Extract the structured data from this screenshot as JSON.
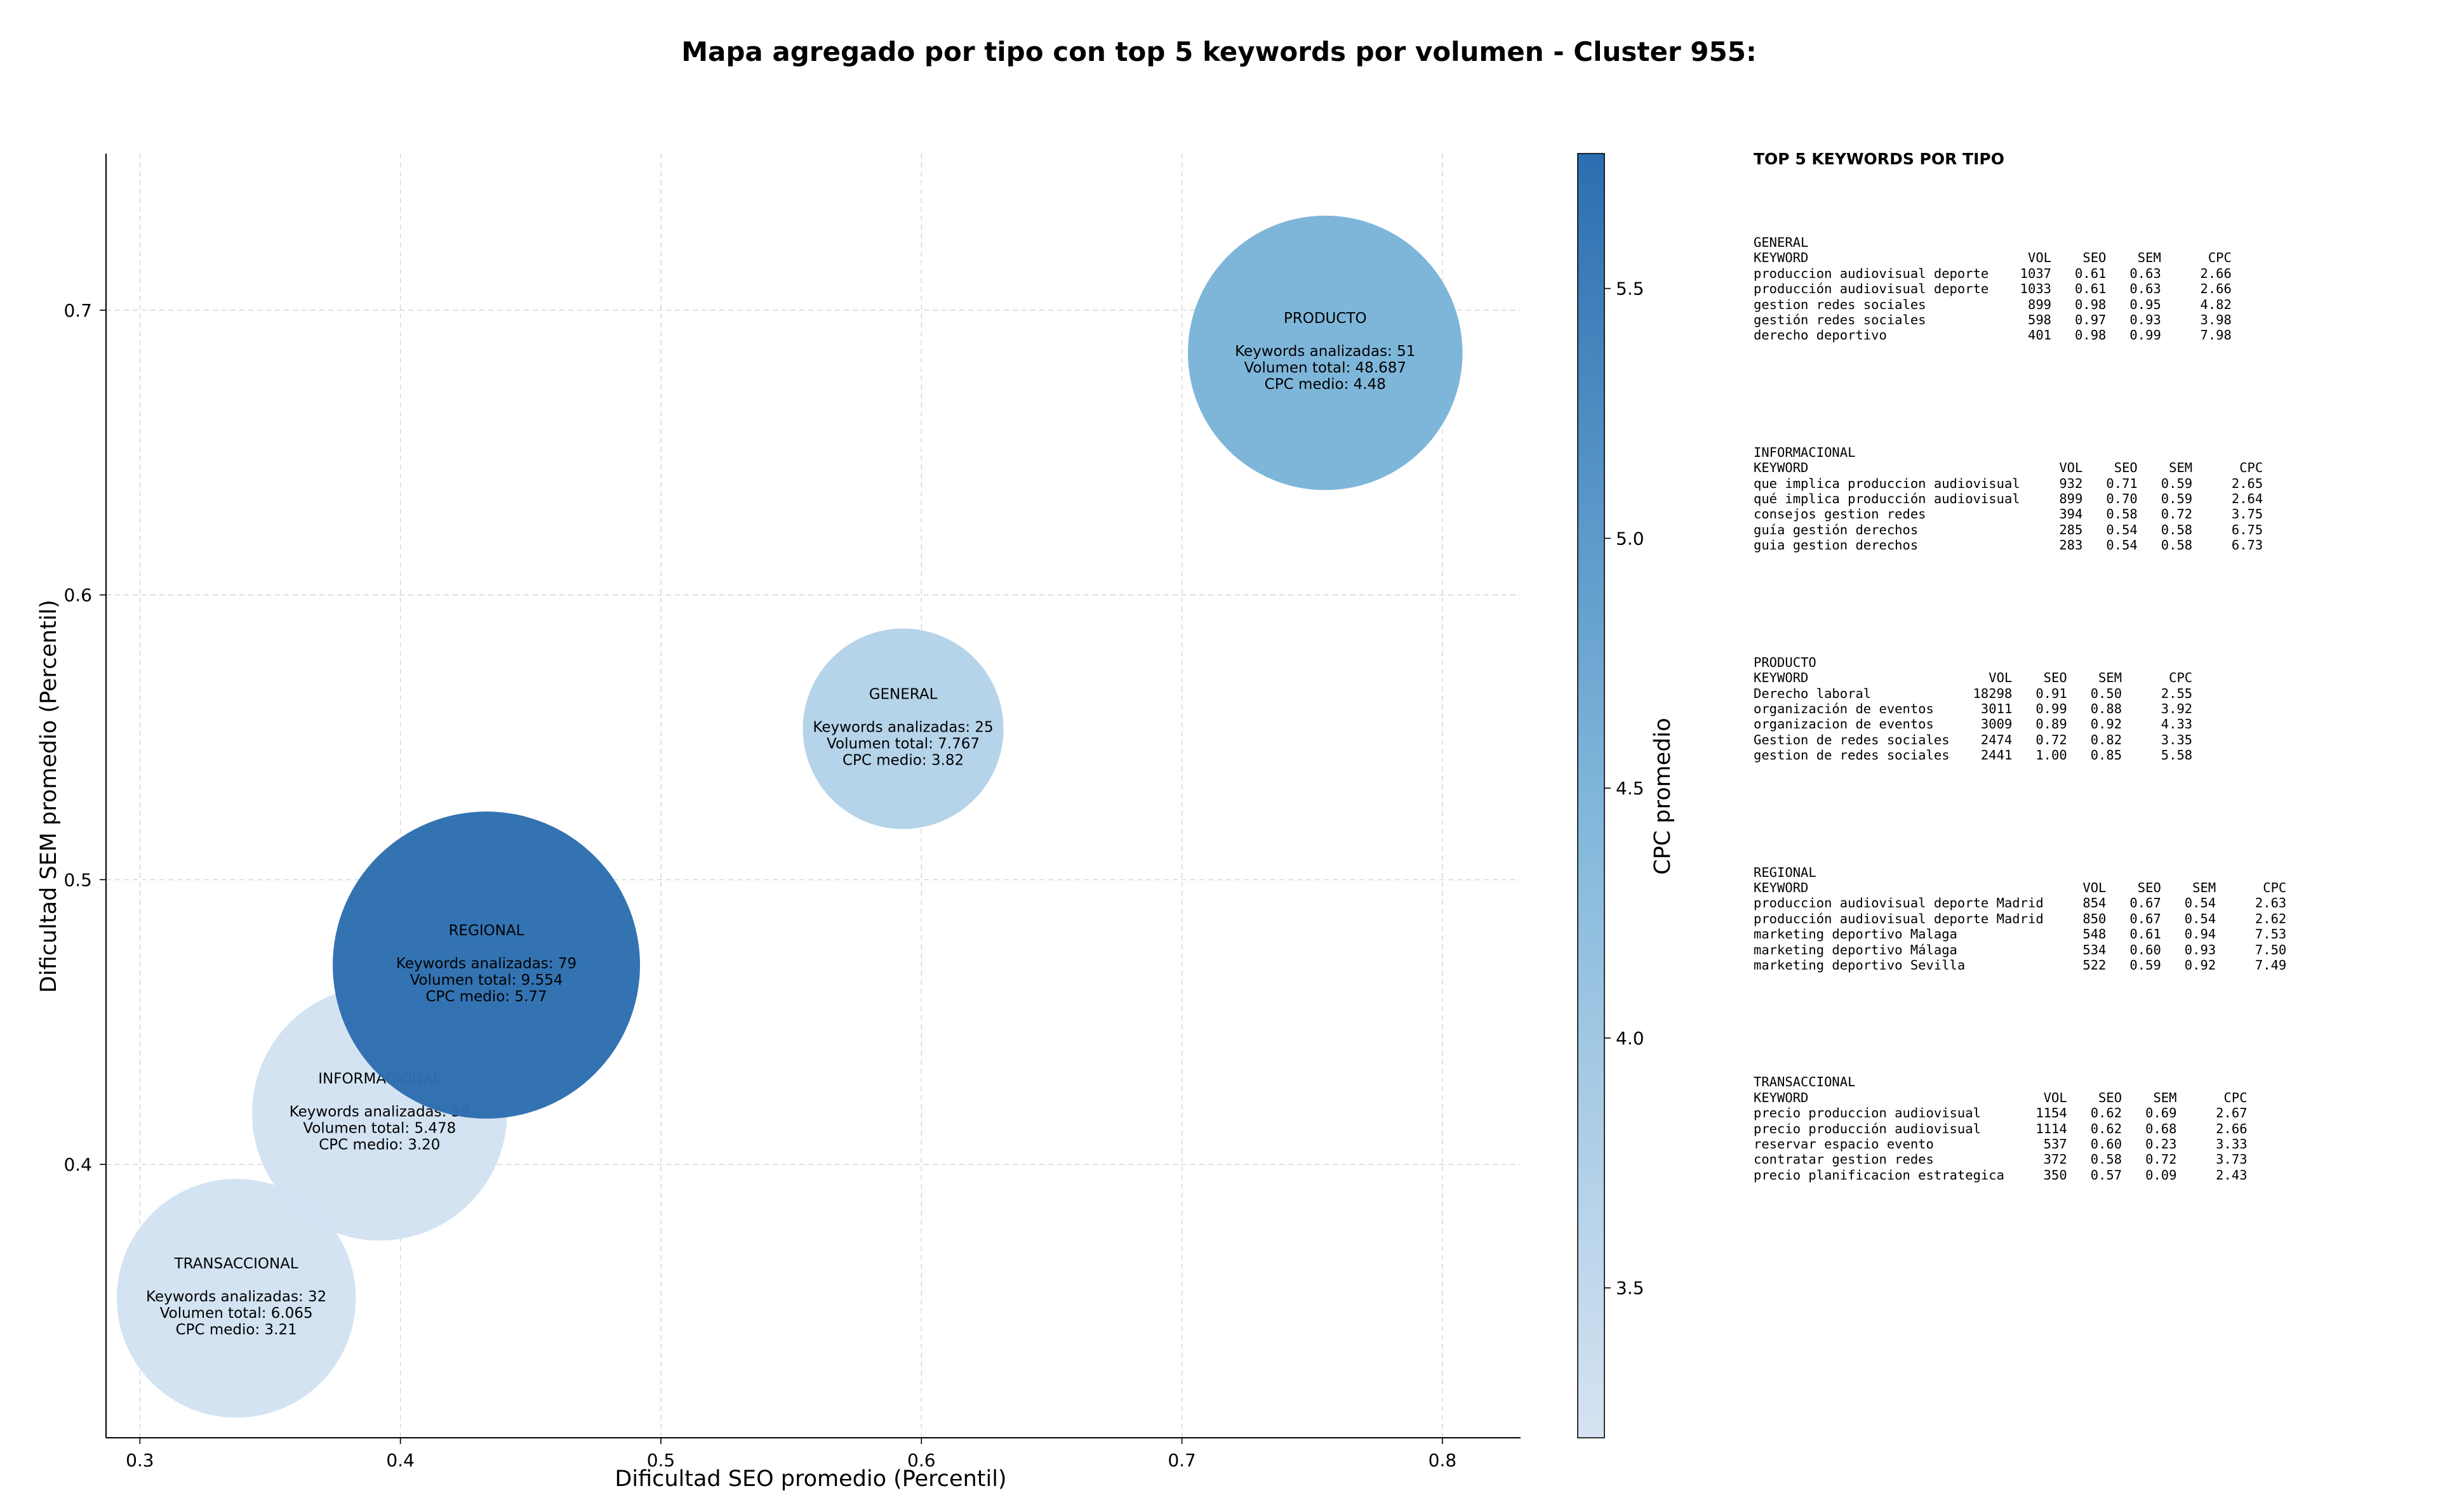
{
  "chart_data": {
    "type": "bubble",
    "title": "Mapa agregado por tipo con top 5 keywords por volumen - Cluster 955:",
    "xlabel": "Dificultad SEO promedio (Percentil)",
    "ylabel": "Dificultad SEM promedio (Percentil)",
    "xlim": [
      0.287,
      0.83
    ],
    "ylim": [
      0.304,
      0.755
    ],
    "xticks": [
      0.3,
      0.4,
      0.5,
      0.6,
      0.7,
      0.8
    ],
    "xtick_labels": [
      "0.3",
      "0.4",
      "0.5",
      "0.6",
      "0.7",
      "0.8"
    ],
    "yticks": [
      0.4,
      0.5,
      0.6,
      0.7
    ],
    "ytick_labels": [
      "0.4",
      "0.5",
      "0.6",
      "0.7"
    ],
    "grid": true,
    "colorbar": {
      "label": "CPC promedio",
      "min": 3.2,
      "max": 5.77,
      "ticks": [
        3.5,
        4.0,
        4.5,
        5.0,
        5.5
      ],
      "tick_labels": [
        "3.5",
        "4.0",
        "4.5",
        "5.0",
        "5.5"
      ],
      "color_low": "#d6e3f2",
      "color_mid": "#7fb6da",
      "color_high": "#2c6eb0"
    },
    "points": [
      {
        "name": "PRODUCTO",
        "x": 0.755,
        "y": 0.685,
        "color": "#7ab4d9",
        "lines": [
          "Keywords analizadas: 51",
          "Volumen total: 48.687",
          "CPC medio: 4.48"
        ]
      },
      {
        "name": "GENERAL",
        "x": 0.593,
        "y": 0.553,
        "color": "#b3d2e8",
        "lines": [
          "Keywords analizadas: 25",
          "Volumen total: 7.767",
          "CPC medio: 3.82"
        ]
      },
      {
        "name": "INFORMACIONAL",
        "x": 0.392,
        "y": 0.418,
        "color": "#d2e2f2",
        "lines": [
          "Keywords analizadas: 39",
          "Volumen total: 5.478",
          "CPC medio: 3.20"
        ]
      },
      {
        "name": "REGIONAL",
        "x": 0.433,
        "y": 0.47,
        "color": "#2c6eb0",
        "lines": [
          "Keywords analizadas: 79",
          "Volumen total: 9.554",
          "CPC medio: 5.77"
        ]
      },
      {
        "name": "TRANSACCIONAL",
        "x": 0.337,
        "y": 0.353,
        "color": "#d2e2f2",
        "lines": [
          "Keywords analizadas: 32",
          "Volumen total: 6.065",
          "CPC medio: 3.21"
        ]
      }
    ]
  },
  "keywords_panel": {
    "title": "TOP 5 KEYWORDS POR TIPO",
    "blocks": [
      {
        "type": "GENERAL",
        "lines": [
          "KEYWORD                            VOL    SEO    SEM      CPC",
          "produccion audiovisual deporte    1037   0.61   0.63     2.66",
          "producción audiovisual deporte    1033   0.61   0.63     2.66",
          "gestion redes sociales             899   0.98   0.95     4.82",
          "gestión redes sociales             598   0.97   0.93     3.98",
          "derecho deportivo                  401   0.98   0.99     7.98"
        ]
      },
      {
        "type": "INFORMACIONAL",
        "lines": [
          "KEYWORD                                VOL    SEO    SEM      CPC",
          "que implica produccion audiovisual     932   0.71   0.59     2.65",
          "qué implica producción audiovisual     899   0.70   0.59     2.64",
          "consejos gestion redes                 394   0.58   0.72     3.75",
          "guía gestión derechos                  285   0.54   0.58     6.75",
          "guia gestion derechos                  283   0.54   0.58     6.73"
        ]
      },
      {
        "type": "PRODUCTO",
        "lines": [
          "KEYWORD                       VOL    SEO    SEM      CPC",
          "Derecho laboral             18298   0.91   0.50     2.55",
          "organización de eventos      3011   0.99   0.88     3.92",
          "organizacion de eventos      3009   0.89   0.92     4.33",
          "Gestion de redes sociales    2474   0.72   0.82     3.35",
          "gestion de redes sociales    2441   1.00   0.85     5.58"
        ]
      },
      {
        "type": "REGIONAL",
        "lines": [
          "KEYWORD                                   VOL    SEO    SEM      CPC",
          "produccion audiovisual deporte Madrid     854   0.67   0.54     2.63",
          "producción audiovisual deporte Madrid     850   0.67   0.54     2.62",
          "marketing deportivo Malaga                548   0.61   0.94     7.53",
          "marketing deportivo Málaga                534   0.60   0.93     7.50",
          "marketing deportivo Sevilla               522   0.59   0.92     7.49"
        ]
      },
      {
        "type": "TRANSACCIONAL",
        "lines": [
          "KEYWORD                              VOL    SEO    SEM      CPC",
          "precio produccion audiovisual       1154   0.62   0.69     2.67",
          "precio producción audiovisual       1114   0.62   0.68     2.66",
          "reservar espacio evento              537   0.60   0.23     3.33",
          "contratar gestion redes              372   0.58   0.72     3.73",
          "precio planificacion estrategica     350   0.57   0.09     2.43"
        ]
      }
    ]
  }
}
